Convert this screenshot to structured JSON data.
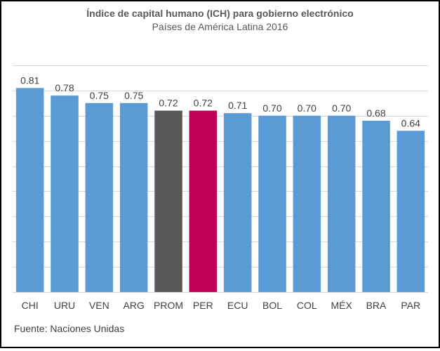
{
  "chart_data": {
    "type": "bar",
    "title": "Índice de capital humano (ICH) para gobierno electrónico",
    "subtitle": "Países de América Latina 2016",
    "categories": [
      "CHI",
      "URU",
      "VEN",
      "ARG",
      "PROM",
      "PER",
      "ECU",
      "BOL",
      "COL",
      "MÉX",
      "BRA",
      "PAR"
    ],
    "values": [
      0.81,
      0.78,
      0.75,
      0.75,
      0.72,
      0.72,
      0.71,
      0.7,
      0.7,
      0.7,
      0.68,
      0.64
    ],
    "value_labels": [
      "0.81",
      "0.78",
      "0.75",
      "0.75",
      "0.72",
      "0.72",
      "0.71",
      "0.70",
      "0.70",
      "0.70",
      "0.68",
      "0.64"
    ],
    "colors": [
      "#5b9bd5",
      "#5b9bd5",
      "#5b9bd5",
      "#5b9bd5",
      "#595959",
      "#c00055",
      "#5b9bd5",
      "#5b9bd5",
      "#5b9bd5",
      "#5b9bd5",
      "#5b9bd5",
      "#5b9bd5"
    ],
    "xlabel": "",
    "ylabel": "",
    "ylim": [
      0,
      0.9
    ],
    "grid": true,
    "source": "Fuente: Naciones Unidas"
  }
}
